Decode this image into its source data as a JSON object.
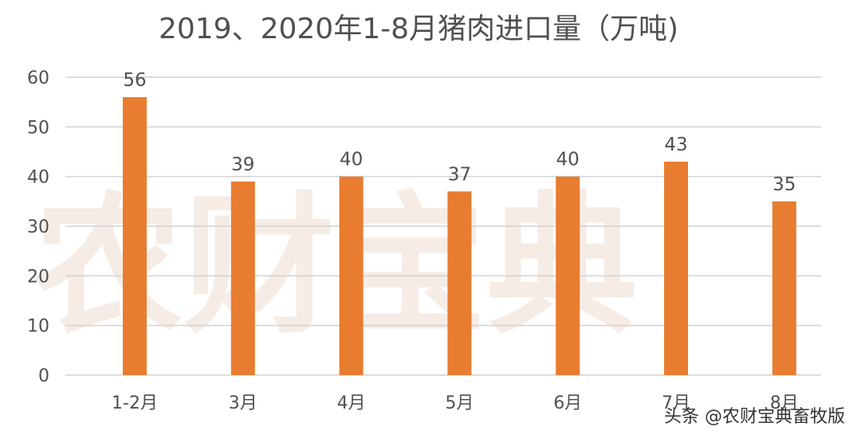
{
  "chart_data": {
    "type": "bar",
    "title": "2019、2020年1-8月猪肉进口量（万吨)",
    "categories": [
      "1-2月",
      "3月",
      "4月",
      "5月",
      "6月",
      "7月",
      "8月"
    ],
    "series": [
      {
        "values": [
          56,
          39,
          40,
          37,
          40,
          43,
          35
        ]
      }
    ],
    "data_labels": [
      "56",
      "39",
      "40",
      "37",
      "40",
      "43",
      "35"
    ],
    "ylim": [
      0,
      60
    ],
    "yticks": [
      0,
      10,
      20,
      30,
      40,
      50,
      60
    ],
    "grid": true,
    "bar_color": "#e87c30",
    "xlabel": "",
    "ylabel": ""
  },
  "watermark": "农财宝典",
  "credit": "头条 @农财宝典畜牧版"
}
